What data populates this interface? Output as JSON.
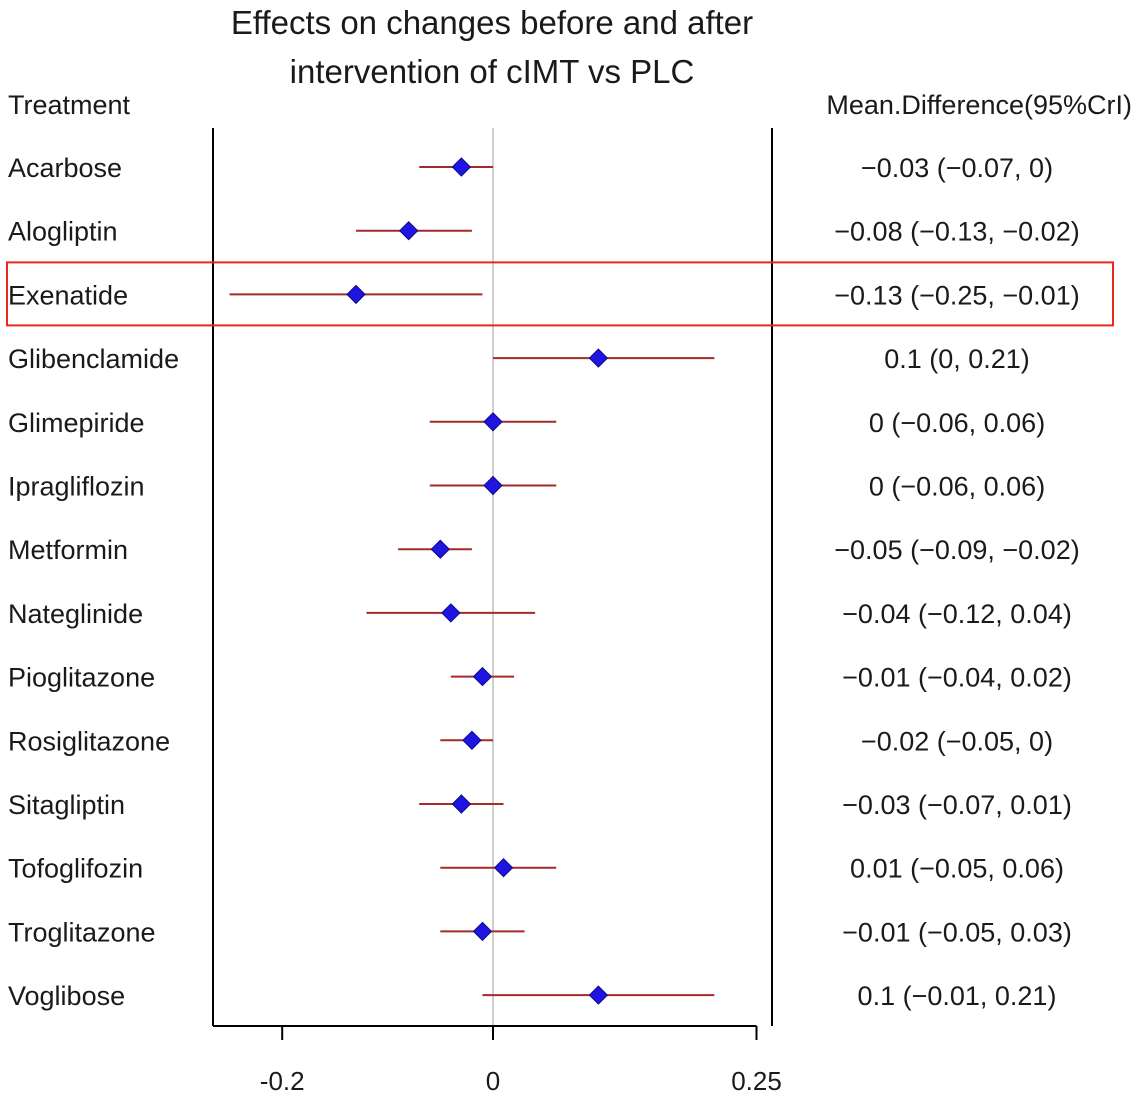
{
  "chart_data": {
    "type": "forest",
    "title_lines": [
      "Effects on changes before and after",
      "intervention of cIMT vs PLC"
    ],
    "left_header": "Treatment",
    "right_header": "Mean.Difference(95%CrI)",
    "xlim": [
      -0.26,
      0.26
    ],
    "xticks": [
      -0.2,
      0,
      0.25
    ],
    "xtick_labels": [
      "-0.2",
      "0",
      "0.25"
    ],
    "reference_line": 0,
    "highlighted_treatment": "Exenatide",
    "colors": {
      "marker": "#1f14e0",
      "ci_line": "#a52a2a",
      "highlight_box": "#e8271d",
      "reference": "#cfcfcf",
      "axis": "#000000"
    },
    "rows": [
      {
        "treatment": "Acarbose",
        "mean": -0.03,
        "lower": -0.07,
        "upper": 0,
        "label": "−0.03 (−0.07, 0)"
      },
      {
        "treatment": "Alogliptin",
        "mean": -0.08,
        "lower": -0.13,
        "upper": -0.02,
        "label": "−0.08 (−0.13, −0.02)"
      },
      {
        "treatment": "Exenatide",
        "mean": -0.13,
        "lower": -0.25,
        "upper": -0.01,
        "label": "−0.13 (−0.25, −0.01)"
      },
      {
        "treatment": "Glibenclamide",
        "mean": 0.1,
        "lower": 0,
        "upper": 0.21,
        "label": "0.1 (0, 0.21)"
      },
      {
        "treatment": "Glimepiride",
        "mean": 0,
        "lower": -0.06,
        "upper": 0.06,
        "label": "0 (−0.06, 0.06)"
      },
      {
        "treatment": "Ipragliflozin",
        "mean": 0,
        "lower": -0.06,
        "upper": 0.06,
        "label": "0 (−0.06, 0.06)"
      },
      {
        "treatment": "Metformin",
        "mean": -0.05,
        "lower": -0.09,
        "upper": -0.02,
        "label": "−0.05 (−0.09, −0.02)"
      },
      {
        "treatment": "Nateglinide",
        "mean": -0.04,
        "lower": -0.12,
        "upper": 0.04,
        "label": "−0.04 (−0.12, 0.04)"
      },
      {
        "treatment": "Pioglitazone",
        "mean": -0.01,
        "lower": -0.04,
        "upper": 0.02,
        "label": "−0.01 (−0.04, 0.02)"
      },
      {
        "treatment": "Rosiglitazone",
        "mean": -0.02,
        "lower": -0.05,
        "upper": 0,
        "label": "−0.02 (−0.05, 0)"
      },
      {
        "treatment": "Sitagliptin",
        "mean": -0.03,
        "lower": -0.07,
        "upper": 0.01,
        "label": "−0.03 (−0.07, 0.01)"
      },
      {
        "treatment": "Tofoglifozin",
        "mean": 0.01,
        "lower": -0.05,
        "upper": 0.06,
        "label": "0.01 (−0.05, 0.06)"
      },
      {
        "treatment": "Troglitazone",
        "mean": -0.01,
        "lower": -0.05,
        "upper": 0.03,
        "label": "−0.01 (−0.05, 0.03)"
      },
      {
        "treatment": "Voglibose",
        "mean": 0.1,
        "lower": -0.01,
        "upper": 0.21,
        "label": "0.1 (−0.01, 0.21)"
      }
    ]
  }
}
